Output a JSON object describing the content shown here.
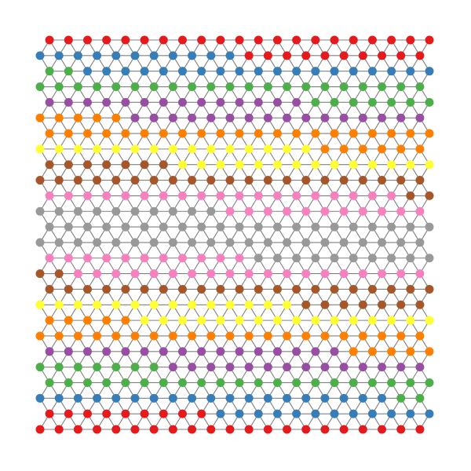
{
  "graph": {
    "palette": {
      "red": "#e41a1c",
      "blue": "#377eb8",
      "green": "#4daf4a",
      "purple": "#984ea3",
      "orange": "#ff7f00",
      "yellow": "#ffff33",
      "brown": "#a65628",
      "pink": "#f781bf",
      "gray": "#999999"
    },
    "rows": [
      [
        [
          "red",
          21
        ]
      ],
      [
        [
          "blue",
          11
        ],
        [
          "red",
          10
        ]
      ],
      [
        [
          "green",
          2
        ],
        [
          "blue",
          19
        ]
      ],
      [
        [
          "green",
          21
        ]
      ],
      [
        [
          "purple",
          14
        ],
        [
          "green",
          7
        ]
      ],
      [
        [
          "orange",
          5
        ],
        [
          "purple",
          16
        ]
      ],
      [
        [
          "orange",
          21
        ]
      ],
      [
        [
          "yellow",
          15
        ],
        [
          "orange",
          6
        ]
      ],
      [
        [
          "brown",
          7
        ],
        [
          "yellow",
          14
        ]
      ],
      [
        [
          "brown",
          21
        ]
      ],
      [
        [
          "pink",
          19
        ],
        [
          "brown",
          2
        ]
      ],
      [
        [
          "gray",
          10
        ],
        [
          "pink",
          11
        ]
      ],
      [
        [
          "gray",
          21
        ]
      ],
      [
        [
          "gray",
          21
        ]
      ],
      [
        [
          "pink",
          11
        ],
        [
          "gray",
          10
        ]
      ],
      [
        [
          "brown",
          2
        ],
        [
          "pink",
          19
        ]
      ],
      [
        [
          "brown",
          21
        ]
      ],
      [
        [
          "yellow",
          14
        ],
        [
          "brown",
          7
        ]
      ],
      [
        [
          "orange",
          5
        ],
        [
          "yellow",
          16
        ]
      ],
      [
        [
          "orange",
          21
        ]
      ],
      [
        [
          "purple",
          16
        ],
        [
          "orange",
          5
        ]
      ],
      [
        [
          "green",
          7
        ],
        [
          "purple",
          14
        ]
      ],
      [
        [
          "green",
          21
        ]
      ],
      [
        [
          "blue",
          19
        ],
        [
          "green",
          2
        ]
      ],
      [
        [
          "red",
          9
        ],
        [
          "blue",
          12
        ]
      ],
      [
        [
          "red",
          21
        ]
      ]
    ]
  }
}
